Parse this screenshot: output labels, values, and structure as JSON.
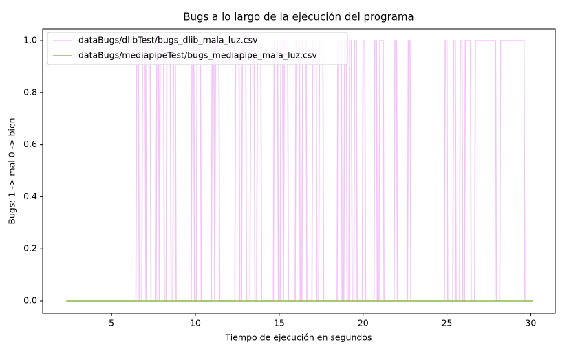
{
  "chart_data": {
    "type": "line",
    "title": "Bugs a lo largo de la ejecución del programa",
    "xlabel": "Tiempo de ejecución en segundos",
    "ylabel": "Bugs: 1 -> mal  0 -> bien",
    "xlim": [
      0.89,
      31.46
    ],
    "ylim": [
      -0.0475,
      1.045
    ],
    "xticks": [
      5,
      10,
      15,
      20,
      25,
      30
    ],
    "yticks": [
      {
        "value": 0,
        "label": "0.0"
      },
      0.2,
      0.4,
      0.6,
      0.8,
      {
        "value": 1,
        "label": "1.0"
      }
    ],
    "legend": "upper left",
    "series": [
      {
        "name": "dataBugs/dlibTest/bugs_dlib_mala_luz.csv",
        "color": "#f2c4f8",
        "x": [
          2.3,
          6.45,
          6.5,
          6.6,
          6.65,
          6.8,
          6.85,
          7.0,
          7.05,
          7.05,
          7.1,
          7.3,
          7.35,
          7.65,
          7.7,
          7.8,
          7.85,
          7.85,
          7.9,
          8.1,
          8.15,
          8.25,
          8.3,
          8.5,
          8.55,
          8.65,
          8.7,
          8.8,
          8.85,
          9.75,
          9.8,
          9.9,
          9.95,
          10.05,
          10.1,
          10.3,
          10.35,
          10.95,
          11.0,
          11.1,
          11.15,
          11.15,
          11.2,
          11.4,
          11.45,
          12.35,
          12.4,
          12.6,
          12.65,
          12.75,
          12.8,
          13.0,
          13.05,
          13.25,
          13.3,
          13.5,
          13.55,
          13.65,
          13.7,
          13.9,
          13.95,
          14.65,
          14.7,
          14.9,
          14.95,
          15.05,
          15.1,
          15.2,
          15.25,
          15.25,
          15.3,
          15.5,
          15.55,
          15.95,
          16.0,
          16.2,
          16.25,
          16.35,
          16.4,
          16.6,
          16.65,
          16.95,
          17.0,
          17.2,
          17.25,
          17.35,
          17.4,
          17.6,
          17.65,
          18.45,
          18.5,
          18.7,
          18.75,
          18.85,
          18.9,
          19.0,
          19.05,
          19.15,
          19.2,
          19.3,
          19.35,
          19.45,
          19.5,
          19.6,
          19.65,
          19.95,
          20.0,
          20.1,
          20.15,
          20.65,
          20.7,
          20.8,
          20.85,
          20.95,
          21.0,
          21.2,
          21.25,
          21.85,
          21.9,
          22.0,
          22.05,
          22.65,
          22.7,
          22.8,
          22.85,
          24.85,
          24.9,
          25.0,
          25.05,
          25.35,
          25.4,
          25.5,
          25.55,
          25.75,
          25.8,
          25.9,
          25.95,
          26.05,
          26.1,
          26.4,
          26.45,
          26.65,
          26.7,
          27.9,
          27.95,
          28.15,
          28.2,
          29.6,
          29.65,
          30.1
        ],
        "values": [
          0,
          0,
          1,
          1,
          0,
          0,
          1,
          1,
          0,
          0,
          1,
          1,
          0,
          0,
          1,
          1,
          0,
          0,
          1,
          1,
          0,
          0,
          1,
          1,
          0,
          0,
          1,
          1,
          0,
          0,
          1,
          1,
          0,
          0,
          1,
          1,
          0,
          0,
          1,
          1,
          0,
          0,
          1,
          1,
          0,
          0,
          1,
          1,
          0,
          0,
          1,
          1,
          0,
          0,
          1,
          1,
          0,
          0,
          1,
          1,
          0,
          0,
          1,
          1,
          0,
          0,
          1,
          1,
          0,
          0,
          1,
          1,
          0,
          0,
          1,
          1,
          0,
          0,
          1,
          1,
          0,
          0,
          1,
          1,
          0,
          0,
          1,
          1,
          0,
          0,
          1,
          1,
          0,
          0,
          1,
          1,
          0,
          0,
          1,
          1,
          0,
          0,
          1,
          1,
          0,
          0,
          1,
          1,
          0,
          0,
          1,
          1,
          0,
          0,
          1,
          1,
          0,
          0,
          1,
          1,
          0,
          0,
          1,
          1,
          0,
          0,
          1,
          1,
          0,
          0,
          1,
          1,
          0,
          0,
          1,
          1,
          0,
          0,
          1,
          1,
          0,
          0,
          1,
          1,
          0,
          0,
          1,
          1,
          0,
          0
        ]
      },
      {
        "name": "dataBugs/mediapipeTest/bugs_mediapipe_mala_luz.csv",
        "color": "#8dbf3c",
        "x": [
          2.3,
          30.1
        ],
        "values": [
          0,
          0
        ]
      }
    ]
  }
}
